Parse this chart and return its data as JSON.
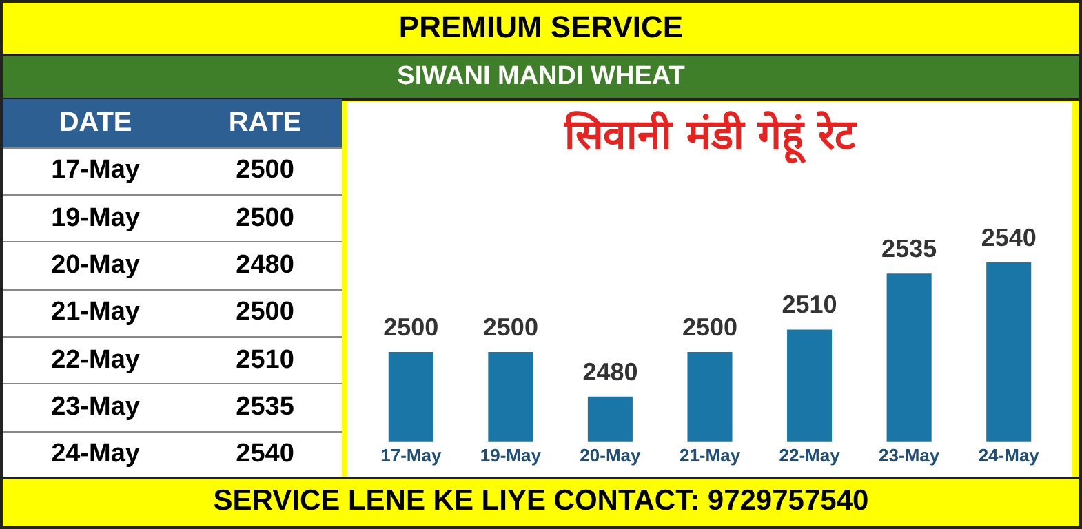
{
  "chart_data": [
    {
      "type": "other",
      "xlabel": "DATE",
      "ylabel": "RATE",
      "categories": [
        "17-May",
        "19-May",
        "20-May",
        "21-May",
        "22-May",
        "23-May",
        "24-May"
      ],
      "values": [
        2500,
        2500,
        2480,
        2500,
        2510,
        2535,
        2540
      ],
      "data_labels": true
    },
    {
      "type": "bar",
      "title": "सिवानी मंडी गेहूं रेट",
      "annotations": [
        "PREMIUM SERVICE",
        "SIWANI MANDI WHEAT",
        "SERVICE LENE KE LIYE CONTACT: 9729757540"
      ],
      "categories": [
        "17-May",
        "19-May",
        "20-May",
        "21-May",
        "22-May",
        "23-May",
        "24-May"
      ],
      "values": [
        2500,
        2500,
        2480,
        2500,
        2510,
        2535,
        2540
      ],
      "color": "#1a76a6",
      "tick_labels": "x",
      "data_labels": true
    }
  ]
}
